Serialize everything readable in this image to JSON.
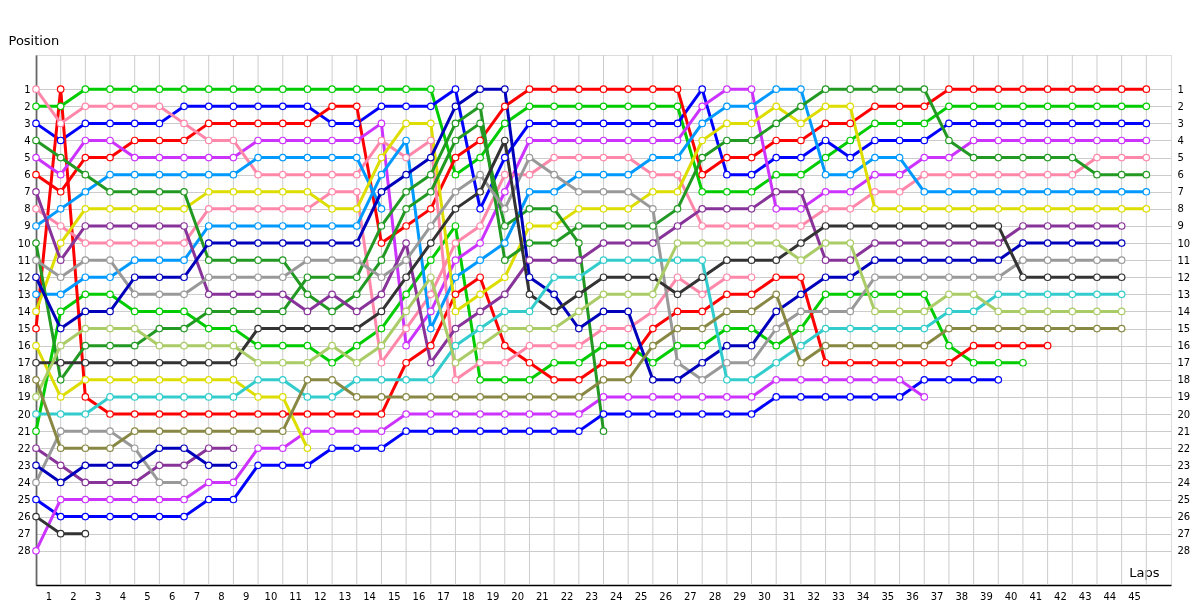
{
  "chart_data": {
    "type": "line",
    "xlabel": "Laps",
    "ylabel": "Position",
    "x": [
      0,
      1,
      2,
      3,
      4,
      5,
      6,
      7,
      8,
      9,
      10,
      11,
      12,
      13,
      14,
      15,
      16,
      17,
      18,
      19,
      20,
      21,
      22,
      23,
      24,
      25,
      26,
      27,
      28,
      29,
      30,
      31,
      32,
      33,
      34,
      35,
      36,
      37,
      38,
      39,
      40,
      41,
      42,
      43,
      44,
      45
    ],
    "xlim": [
      0,
      46
    ],
    "xticks": [
      {
        "value": 0.5,
        "label": "1"
      },
      {
        "value": 1.5,
        "label": "2"
      },
      {
        "value": 2.5,
        "label": "3"
      },
      {
        "value": 3.5,
        "label": "4"
      },
      {
        "value": 4.5,
        "label": "5"
      },
      {
        "value": 5.5,
        "label": "6"
      },
      {
        "value": 6.5,
        "label": "7"
      },
      {
        "value": 7.5,
        "label": "8"
      },
      {
        "value": 8.5,
        "label": "9"
      },
      {
        "value": 9.5,
        "label": "10"
      },
      {
        "value": 10.5,
        "label": "11"
      },
      {
        "value": 11.5,
        "label": "12"
      },
      {
        "value": 12.5,
        "label": "13"
      },
      {
        "value": 13.5,
        "label": "14"
      },
      {
        "value": 14.5,
        "label": "15"
      },
      {
        "value": 15.5,
        "label": "16"
      },
      {
        "value": 16.5,
        "label": "17"
      },
      {
        "value": 17.5,
        "label": "18"
      },
      {
        "value": 18.5,
        "label": "19"
      },
      {
        "value": 19.5,
        "label": "20"
      },
      {
        "value": 20.5,
        "label": "21"
      },
      {
        "value": 21.5,
        "label": "22"
      },
      {
        "value": 22.5,
        "label": "23"
      },
      {
        "value": 23.5,
        "label": "24"
      },
      {
        "value": 24.5,
        "label": "25"
      },
      {
        "value": 25.5,
        "label": "26"
      },
      {
        "value": 26.5,
        "label": "27"
      },
      {
        "value": 27.5,
        "label": "28"
      },
      {
        "value": 28.5,
        "label": "29"
      },
      {
        "value": 29.5,
        "label": "30"
      },
      {
        "value": 30.5,
        "label": "31"
      },
      {
        "value": 31.5,
        "label": "32"
      },
      {
        "value": 32.5,
        "label": "33"
      },
      {
        "value": 33.5,
        "label": "34"
      },
      {
        "value": 34.5,
        "label": "35"
      },
      {
        "value": 35.5,
        "label": "36"
      },
      {
        "value": 36.5,
        "label": "37"
      },
      {
        "value": 37.5,
        "label": "38"
      },
      {
        "value": 38.5,
        "label": "39"
      },
      {
        "value": 39.5,
        "label": "40"
      },
      {
        "value": 40.5,
        "label": "41"
      },
      {
        "value": 41.5,
        "label": "42"
      },
      {
        "value": 42.5,
        "label": "43"
      },
      {
        "value": 43.5,
        "label": "44"
      },
      {
        "value": 44.5,
        "label": "45"
      }
    ],
    "ylim": [
      30,
      -1
    ],
    "yticks": [
      1,
      2,
      3,
      4,
      5,
      6,
      7,
      8,
      9,
      10,
      11,
      12,
      13,
      14,
      15,
      16,
      17,
      18,
      19,
      20,
      21,
      22,
      23,
      24,
      25,
      26,
      27,
      28
    ],
    "y2lim": [
      30,
      -1
    ],
    "y2ticks": [
      1,
      2,
      3,
      4,
      5,
      6,
      7,
      8,
      9,
      10,
      11,
      12,
      13,
      14,
      15,
      16,
      17,
      18,
      19,
      20,
      21,
      22,
      23,
      24,
      25,
      26,
      27,
      28
    ],
    "grid": true,
    "legend": false,
    "marker": "circle",
    "line_style": "solid",
    "series": [
      {
        "color": "#00cc00",
        "values": [
          2,
          2,
          1,
          1,
          1,
          1,
          1,
          1,
          1,
          1,
          1,
          1,
          1,
          1,
          1,
          1,
          1,
          6,
          5,
          3,
          2,
          2,
          2,
          2,
          2,
          2,
          2,
          7,
          7,
          7,
          6,
          6,
          5,
          4,
          3,
          3,
          3,
          2,
          2,
          2,
          2,
          2,
          2,
          2,
          2,
          2
        ]
      },
      {
        "color": "#00cc00",
        "values": [
          21,
          14,
          13,
          13,
          14,
          14,
          14,
          15,
          15,
          16,
          16,
          16,
          17,
          16,
          15,
          13,
          11,
          9,
          18,
          18,
          18,
          17,
          17,
          16,
          16,
          17,
          16,
          16,
          15,
          15,
          16,
          15,
          13,
          13,
          13,
          13,
          13,
          16,
          17,
          17,
          17,
          null,
          null,
          null,
          null,
          null
        ]
      },
      {
        "color": "#0000ff",
        "values": [
          3,
          4,
          3,
          3,
          3,
          3,
          2,
          2,
          2,
          2,
          2,
          2,
          3,
          3,
          2,
          2,
          2,
          1,
          8,
          5,
          3,
          3,
          3,
          3,
          3,
          3,
          3,
          1,
          6,
          6,
          5,
          5,
          4,
          5,
          4,
          4,
          4,
          3,
          3,
          3,
          3,
          3,
          3,
          3,
          3,
          3
        ]
      },
      {
        "color": "#0000ff",
        "values": [
          25,
          26,
          26,
          26,
          26,
          26,
          26,
          25,
          25,
          23,
          23,
          23,
          22,
          22,
          22,
          21,
          21,
          21,
          21,
          21,
          21,
          21,
          21,
          20,
          20,
          20,
          20,
          20,
          20,
          20,
          19,
          19,
          19,
          19,
          19,
          19,
          18,
          18,
          18,
          18,
          null,
          null,
          null,
          null,
          null,
          null
        ]
      },
      {
        "color": "#ff0000",
        "values": [
          6,
          7,
          5,
          5,
          4,
          4,
          4,
          3,
          3,
          3,
          3,
          3,
          2,
          2,
          10,
          9,
          8,
          5,
          4,
          2,
          1,
          1,
          1,
          1,
          1,
          1,
          1,
          6,
          5,
          5,
          4,
          4,
          3,
          3,
          2,
          2,
          2,
          1,
          1,
          1,
          1,
          1,
          1,
          1,
          1,
          1
        ]
      },
      {
        "color": "#ff0000",
        "values": [
          15,
          1,
          19,
          20,
          20,
          20,
          20,
          20,
          20,
          20,
          20,
          20,
          20,
          20,
          20,
          17,
          16,
          13,
          12,
          16,
          17,
          18,
          18,
          17,
          17,
          15,
          14,
          14,
          13,
          13,
          12,
          12,
          17,
          17,
          17,
          17,
          17,
          17,
          16,
          16,
          16,
          16,
          null,
          null,
          null,
          null
        ]
      },
      {
        "color": "#cc33ff",
        "values": [
          5,
          6,
          4,
          4,
          5,
          5,
          5,
          5,
          5,
          4,
          4,
          4,
          4,
          4,
          3,
          16,
          14,
          11,
          10,
          7,
          4,
          4,
          4,
          4,
          4,
          4,
          4,
          2,
          1,
          1,
          8,
          8,
          7,
          7,
          6,
          6,
          5,
          5,
          4,
          4,
          4,
          4,
          4,
          4,
          4,
          4
        ]
      },
      {
        "color": "#cc33ff",
        "values": [
          28,
          25,
          25,
          25,
          25,
          25,
          25,
          24,
          24,
          22,
          22,
          21,
          21,
          21,
          21,
          20,
          20,
          20,
          20,
          20,
          20,
          20,
          20,
          19,
          19,
          19,
          19,
          19,
          19,
          19,
          18,
          18,
          18,
          18,
          18,
          18,
          19,
          null,
          null,
          null,
          null,
          null,
          null,
          null,
          null,
          null
        ]
      },
      {
        "color": "#ff88aa",
        "values": [
          1,
          3,
          2,
          2,
          2,
          2,
          3,
          4,
          4,
          6,
          6,
          6,
          6,
          6,
          4,
          5,
          4,
          18,
          17,
          17,
          16,
          16,
          16,
          15,
          15,
          14,
          12,
          13,
          12,
          12,
          null,
          null,
          null,
          null,
          null,
          null,
          null,
          null,
          null,
          null,
          null,
          null,
          null,
          null,
          null,
          null
        ]
      },
      {
        "color": "#ff88aa",
        "values": [
          8,
          9,
          10,
          10,
          10,
          10,
          10,
          8,
          8,
          8,
          8,
          8,
          7,
          7,
          17,
          15,
          13,
          10,
          9,
          6,
          6,
          5,
          5,
          5,
          5,
          6,
          6,
          9,
          9,
          9,
          9,
          9,
          8,
          8,
          7,
          7,
          6,
          6,
          6,
          6,
          6,
          6,
          6,
          5,
          5,
          5
        ]
      },
      {
        "color": "#0099ff",
        "values": [
          9,
          8,
          7,
          6,
          6,
          6,
          6,
          6,
          6,
          5,
          5,
          5,
          5,
          5,
          8,
          null,
          null,
          null,
          null,
          null,
          null,
          null,
          null,
          null,
          null,
          null,
          null,
          null,
          null,
          null,
          null,
          null,
          null,
          null,
          null,
          null,
          null,
          null,
          null,
          null,
          null,
          null,
          null,
          null,
          null,
          null
        ]
      },
      {
        "color": "#0099ff",
        "values": [
          13,
          13,
          12,
          12,
          11,
          11,
          11,
          9,
          9,
          9,
          9,
          9,
          9,
          9,
          6,
          4,
          15,
          12,
          11,
          10,
          7,
          7,
          6,
          6,
          6,
          5,
          5,
          3,
          2,
          2,
          1,
          1,
          6,
          6,
          5,
          5,
          7,
          7,
          7,
          7,
          7,
          7,
          7,
          7,
          7,
          7
        ]
      },
      {
        "color": "#dddd00",
        "values": [
          14,
          10,
          8,
          8,
          8,
          8,
          8,
          7,
          7,
          7,
          7,
          7,
          8,
          8,
          5,
          3,
          3,
          14,
          13,
          12,
          9,
          9,
          8,
          8,
          8,
          7,
          7,
          4,
          3,
          3,
          2,
          3,
          2,
          2,
          8,
          8,
          8,
          8,
          8,
          8,
          8,
          8,
          8,
          8,
          8,
          8
        ]
      },
      {
        "color": "#dddd00",
        "values": [
          16,
          19,
          18,
          18,
          18,
          18,
          18,
          18,
          18,
          19,
          19,
          22,
          null,
          null,
          null,
          null,
          null,
          null,
          null,
          null,
          null,
          null,
          null,
          null,
          null,
          null,
          null,
          null,
          null,
          null,
          null,
          null,
          null,
          null,
          null,
          null,
          null,
          null,
          null,
          null,
          null,
          null,
          null,
          null,
          null,
          null
        ]
      },
      {
        "color": "#229922",
        "values": [
          4,
          5,
          6,
          7,
          7,
          7,
          7,
          11,
          11,
          11,
          11,
          13,
          14,
          13,
          11,
          8,
          7,
          4,
          3,
          9,
          8,
          8,
          10,
          21,
          null,
          null,
          null,
          null,
          null,
          null,
          null,
          null,
          null,
          null,
          null,
          null,
          null,
          null,
          null,
          null,
          null,
          null,
          null,
          null,
          null,
          null
        ]
      },
      {
        "color": "#229922",
        "values": [
          10,
          18,
          16,
          16,
          16,
          15,
          15,
          14,
          14,
          14,
          14,
          12,
          12,
          12,
          9,
          7,
          6,
          3,
          2,
          11,
          10,
          10,
          9,
          9,
          9,
          9,
          8,
          5,
          4,
          4,
          3,
          2,
          1,
          1,
          1,
          1,
          1,
          4,
          5,
          5,
          5,
          5,
          5,
          6,
          6,
          6
        ]
      },
      {
        "color": "#883399",
        "values": [
          7,
          11,
          9,
          9,
          9,
          9,
          9,
          13,
          13,
          13,
          13,
          14,
          13,
          14,
          13,
          10,
          17,
          15,
          14,
          13,
          11,
          11,
          11,
          10,
          10,
          10,
          9,
          8,
          8,
          8,
          7,
          7,
          11,
          11,
          10,
          10,
          10,
          10,
          10,
          10,
          9,
          9,
          9,
          9,
          9,
          null
        ]
      },
      {
        "color": "#883399",
        "values": [
          22,
          23,
          24,
          24,
          24,
          23,
          23,
          22,
          22,
          null,
          null,
          null,
          null,
          null,
          null,
          null,
          null,
          null,
          null,
          null,
          null,
          null,
          null,
          null,
          null,
          null,
          null,
          null,
          null,
          null,
          null,
          null,
          null,
          null,
          null,
          null,
          null,
          null,
          null,
          null,
          null,
          null,
          null,
          null,
          null,
          null
        ]
      },
      {
        "color": "#999999",
        "values": [
          11,
          12,
          11,
          11,
          13,
          13,
          13,
          12,
          12,
          12,
          12,
          11,
          11,
          11,
          12,
          11,
          9,
          7,
          6,
          8,
          5,
          6,
          7,
          7,
          7,
          8,
          17,
          18,
          17,
          17,
          15,
          14,
          14,
          14,
          12,
          12,
          12,
          12,
          12,
          12,
          11,
          11,
          11,
          11,
          11,
          null
        ]
      },
      {
        "color": "#999999",
        "values": [
          24,
          21,
          21,
          21,
          22,
          24,
          24,
          null,
          null,
          null,
          null,
          null,
          null,
          null,
          null,
          null,
          null,
          null,
          null,
          null,
          null,
          null,
          null,
          null,
          null,
          null,
          null,
          null,
          null,
          null,
          null,
          null,
          null,
          null,
          null,
          null,
          null,
          null,
          null,
          null,
          null,
          null,
          null,
          null,
          null,
          null
        ]
      },
      {
        "color": "#0000bb",
        "values": [
          12,
          15,
          14,
          14,
          12,
          12,
          12,
          10,
          10,
          10,
          10,
          10,
          10,
          10,
          7,
          6,
          5,
          2,
          1,
          1,
          12,
          13,
          15,
          14,
          14,
          18,
          18,
          17,
          16,
          16,
          14,
          13,
          12,
          12,
          11,
          11,
          11,
          11,
          11,
          11,
          10,
          10,
          10,
          10,
          10,
          null
        ]
      },
      {
        "color": "#0000bb",
        "values": [
          23,
          24,
          23,
          23,
          23,
          22,
          22,
          23,
          23,
          null,
          null,
          null,
          null,
          null,
          null,
          null,
          null,
          null,
          null,
          null,
          null,
          null,
          null,
          null,
          null,
          null,
          null,
          null,
          null,
          null,
          null,
          null,
          null,
          null,
          null,
          null,
          null,
          null,
          null,
          null,
          null,
          null,
          null,
          null,
          null,
          null
        ]
      },
      {
        "color": "#333333",
        "values": [
          17,
          17,
          17,
          17,
          17,
          17,
          17,
          17,
          17,
          15,
          15,
          15,
          15,
          15,
          14,
          12,
          10,
          8,
          7,
          4,
          13,
          14,
          13,
          12,
          12,
          12,
          13,
          12,
          11,
          11,
          11,
          10,
          9,
          9,
          9,
          9,
          9,
          9,
          9,
          9,
          12,
          12,
          12,
          12,
          12,
          null
        ]
      },
      {
        "color": "#333333",
        "values": [
          26,
          27,
          27,
          null,
          null,
          null,
          null,
          null,
          null,
          null,
          null,
          null,
          null,
          null,
          null,
          null,
          null,
          null,
          null,
          null,
          null,
          null,
          null,
          null,
          null,
          null,
          null,
          null,
          null,
          null,
          null,
          null,
          null,
          null,
          null,
          null,
          null,
          null,
          null,
          null,
          null,
          null,
          null,
          null,
          null,
          null
        ]
      },
      {
        "color": "#33cccc",
        "values": [
          20,
          20,
          20,
          19,
          19,
          19,
          19,
          19,
          19,
          18,
          18,
          19,
          19,
          18,
          18,
          18,
          18,
          16,
          15,
          14,
          14,
          12,
          12,
          11,
          11,
          11,
          11,
          11,
          18,
          18,
          17,
          16,
          15,
          15,
          15,
          15,
          15,
          14,
          14,
          13,
          13,
          13,
          13,
          13,
          13,
          null
        ]
      },
      {
        "color": "#aacc66",
        "values": [
          19,
          16,
          15,
          15,
          15,
          16,
          16,
          16,
          16,
          17,
          17,
          17,
          16,
          17,
          16,
          14,
          12,
          17,
          16,
          15,
          15,
          15,
          14,
          13,
          13,
          13,
          10,
          10,
          10,
          10,
          10,
          11,
          10,
          10,
          14,
          14,
          14,
          13,
          13,
          14,
          14,
          14,
          14,
          14,
          14,
          null
        ]
      },
      {
        "color": "#888844",
        "values": [
          18,
          22,
          22,
          22,
          21,
          21,
          21,
          21,
          21,
          21,
          21,
          18,
          18,
          19,
          19,
          19,
          19,
          19,
          19,
          19,
          19,
          19,
          19,
          18,
          18,
          16,
          15,
          15,
          14,
          14,
          13,
          17,
          16,
          16,
          16,
          16,
          16,
          15,
          15,
          15,
          15,
          15,
          15,
          15,
          15,
          null
        ]
      }
    ]
  }
}
